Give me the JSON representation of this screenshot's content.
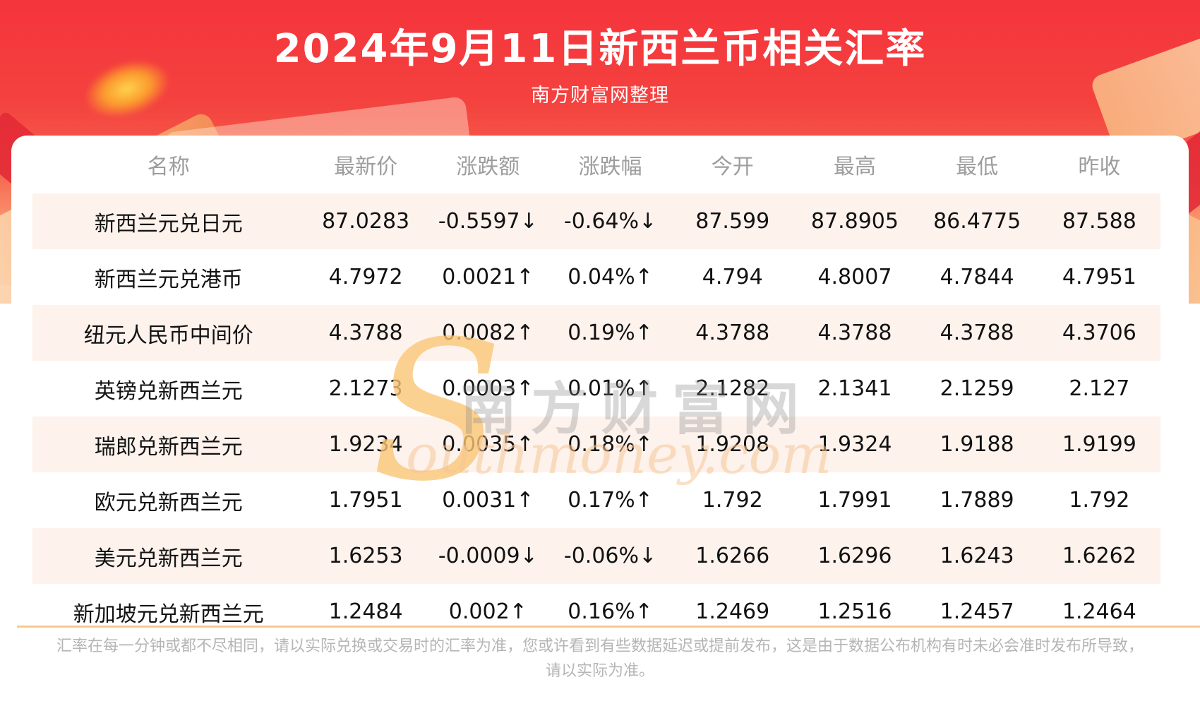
{
  "header": {
    "title": "2024年9月11日新西兰币相关汇率",
    "subtitle": "南方财富网整理"
  },
  "table": {
    "columns": [
      "名称",
      "最新价",
      "涨跌额",
      "涨跌幅",
      "今开",
      "最高",
      "最低",
      "昨收"
    ],
    "rows": [
      {
        "name": "新西兰元兑日元",
        "latest": "87.0283",
        "change": "-0.5597↓",
        "change_pct": "-0.64%↓",
        "open": "87.599",
        "high": "87.8905",
        "low": "86.4775",
        "prev_close": "87.588",
        "trend": "down"
      },
      {
        "name": "新西兰元兑港币",
        "latest": "4.7972",
        "change": "0.0021↑",
        "change_pct": "0.04%↑",
        "open": "4.794",
        "high": "4.8007",
        "low": "4.7844",
        "prev_close": "4.7951",
        "trend": "up"
      },
      {
        "name": "纽元人民币中间价",
        "latest": "4.3788",
        "change": "0.0082↑",
        "change_pct": "0.19%↑",
        "open": "4.3788",
        "high": "4.3788",
        "low": "4.3788",
        "prev_close": "4.3706",
        "trend": "up"
      },
      {
        "name": "英镑兑新西兰元",
        "latest": "2.1273",
        "change": "0.0003↑",
        "change_pct": "0.01%↑",
        "open": "2.1282",
        "high": "2.1341",
        "low": "2.1259",
        "prev_close": "2.127",
        "trend": "up"
      },
      {
        "name": "瑞郎兑新西兰元",
        "latest": "1.9234",
        "change": "0.0035↑",
        "change_pct": "0.18%↑",
        "open": "1.9208",
        "high": "1.9324",
        "low": "1.9188",
        "prev_close": "1.9199",
        "trend": "up"
      },
      {
        "name": "欧元兑新西兰元",
        "latest": "1.7951",
        "change": "0.0031↑",
        "change_pct": "0.17%↑",
        "open": "1.792",
        "high": "1.7991",
        "low": "1.7889",
        "prev_close": "1.792",
        "trend": "up"
      },
      {
        "name": "美元兑新西兰元",
        "latest": "1.6253",
        "change": "-0.0009↓",
        "change_pct": "-0.06%↓",
        "open": "1.6266",
        "high": "1.6296",
        "low": "1.6243",
        "prev_close": "1.6262",
        "trend": "down"
      },
      {
        "name": "新加坡元兑新西兰元",
        "latest": "1.2484",
        "change": "0.002↑",
        "change_pct": "0.16%↑",
        "open": "1.2469",
        "high": "1.2516",
        "low": "1.2457",
        "prev_close": "1.2464",
        "trend": "up"
      }
    ]
  },
  "watermark": {
    "initial": "S",
    "cn": "南方财富网",
    "en": "outhmoney.com"
  },
  "footer": {
    "disclaimer": "汇率在每一分钟或都不尽相同，请以实际兑换或交易时的汇率为准，您或许看到有些数据延迟或提前发布，这是由于数据公布机构有时未必会准时发布所导致，请以实际为准。"
  },
  "colors": {
    "up_red": "#f40e0e",
    "down_green": "#0e8b11",
    "hero_red": "#f5343c",
    "row_alt": "#fdf2ec",
    "divider_orange": "#f8c98d",
    "header_text_gray": "#9d9d9d"
  },
  "chart_data": {
    "type": "table",
    "title": "2024年9月11日新西兰币相关汇率",
    "subtitle": "南方财富网整理",
    "columns": [
      "名称",
      "最新价",
      "涨跌额",
      "涨跌幅",
      "今开",
      "最高",
      "最低",
      "昨收"
    ],
    "rows": [
      [
        "新西兰元兑日元",
        87.0283,
        -0.5597,
        "-0.64%",
        87.599,
        87.8905,
        86.4775,
        87.588
      ],
      [
        "新西兰元兑港币",
        4.7972,
        0.0021,
        "0.04%",
        4.794,
        4.8007,
        4.7844,
        4.7951
      ],
      [
        "纽元人民币中间价",
        4.3788,
        0.0082,
        "0.19%",
        4.3788,
        4.3788,
        4.3788,
        4.3706
      ],
      [
        "英镑兑新西兰元",
        2.1273,
        0.0003,
        "0.01%",
        2.1282,
        2.1341,
        2.1259,
        2.127
      ],
      [
        "瑞郎兑新西兰元",
        1.9234,
        0.0035,
        "0.18%",
        1.9208,
        1.9324,
        1.9188,
        1.9199
      ],
      [
        "欧元兑新西兰元",
        1.7951,
        0.0031,
        "0.17%",
        1.792,
        1.7991,
        1.7889,
        1.792
      ],
      [
        "美元兑新西兰元",
        1.6253,
        -0.0009,
        "-0.06%",
        1.6266,
        1.6296,
        1.6243,
        1.6262
      ],
      [
        "新加坡元兑新西兰元",
        1.2484,
        0.002,
        "0.16%",
        1.2469,
        1.2516,
        1.2457,
        1.2464
      ]
    ]
  }
}
